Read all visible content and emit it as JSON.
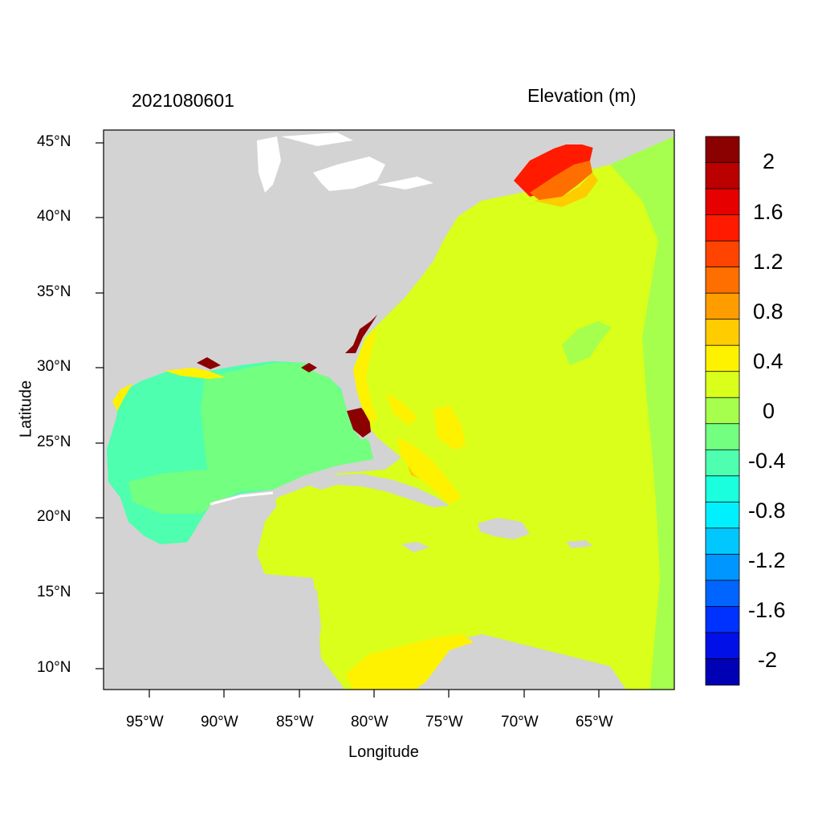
{
  "title_left": "2021080601",
  "title_right": "Elevation (m)",
  "xlabel": "Longitude",
  "ylabel": "Latitude",
  "x_ticks": [
    "95°W",
    "90°W",
    "85°W",
    "80°W",
    "75°W",
    "70°W",
    "65°W"
  ],
  "y_ticks": [
    "45°N",
    "40°N",
    "35°N",
    "30°N",
    "25°N",
    "20°N",
    "15°N",
    "10°N"
  ],
  "colorbar": {
    "labels": [
      "2",
      "1.6",
      "1.2",
      "0.8",
      "0.4",
      "0",
      "-0.4",
      "-0.8",
      "-1.2",
      "-1.6",
      "-2"
    ],
    "colors": [
      "#8b0000",
      "#bb0000",
      "#e60000",
      "#ff1a00",
      "#ff4400",
      "#ff6f00",
      "#ff9c00",
      "#ffcc00",
      "#fff200",
      "#d9ff1a",
      "#a6ff4d",
      "#73ff80",
      "#4dffae",
      "#1affdd",
      "#00f0ff",
      "#00c8ff",
      "#0096ff",
      "#0064ff",
      "#0032ff",
      "#0010e6",
      "#0000b4"
    ]
  },
  "colors": {
    "land": "#d3d3d3",
    "water_background": "#ffffff"
  }
}
